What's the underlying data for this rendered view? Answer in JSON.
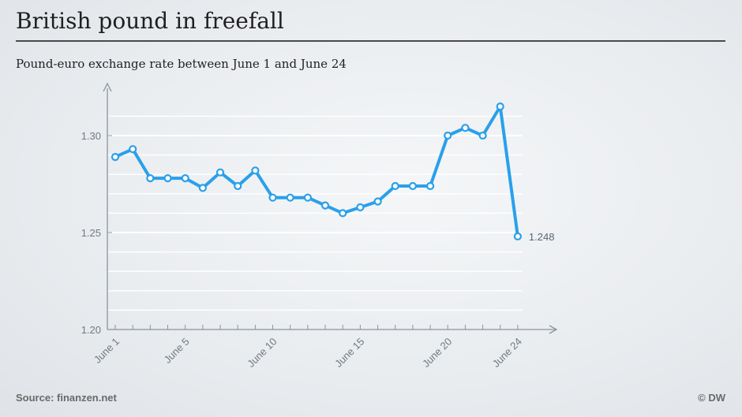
{
  "header": {
    "title": "British pound in freefall",
    "subtitle": "Pound-euro exchange rate between June 1 and June 24"
  },
  "footer": {
    "source": "Source: finanzen.net",
    "copyright": "© DW"
  },
  "colors": {
    "line": "#2aa0ea",
    "grid": "#ffffff",
    "axis": "#8a949c"
  },
  "chart_data": {
    "type": "line",
    "title": "British pound in freefall",
    "subtitle": "Pound-euro exchange rate between June 1 and June 24",
    "xlabel": "",
    "ylabel": "",
    "x_ticks": [
      {
        "day": 1,
        "label": "June 1"
      },
      {
        "day": 5,
        "label": "June 5"
      },
      {
        "day": 10,
        "label": "June 10"
      },
      {
        "day": 15,
        "label": "June 15"
      },
      {
        "day": 20,
        "label": "June 20"
      },
      {
        "day": 24,
        "label": "June 24"
      }
    ],
    "y_ticks": [
      1.2,
      1.25,
      1.3
    ],
    "y_tick_labels": [
      "1.20",
      "1.25",
      "1.30"
    ],
    "ylim": [
      1.2,
      1.32
    ],
    "xlim": [
      1,
      24
    ],
    "grid": true,
    "series": [
      {
        "x": [
          1,
          2,
          3,
          4,
          5,
          6,
          7,
          8,
          9,
          10,
          11,
          12,
          13,
          14,
          15,
          16,
          17,
          18,
          19,
          20,
          21,
          22,
          23,
          24
        ],
        "values": [
          1.289,
          1.293,
          1.278,
          1.278,
          1.278,
          1.273,
          1.281,
          1.274,
          1.282,
          1.268,
          1.268,
          1.268,
          1.264,
          1.26,
          1.263,
          1.266,
          1.274,
          1.274,
          1.274,
          1.3,
          1.304,
          1.3,
          1.315,
          1.248
        ]
      }
    ],
    "annotations": [
      {
        "day": 24,
        "text": "1.248"
      }
    ]
  }
}
